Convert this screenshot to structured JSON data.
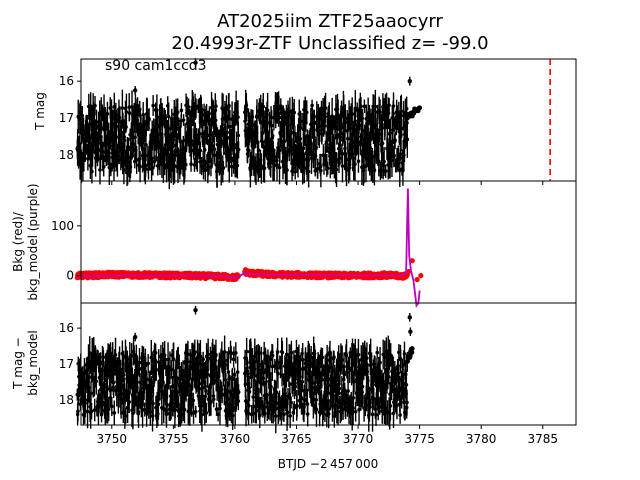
{
  "figure": {
    "title_line1": "AT2025iim  ZTF25aaocyrr",
    "title_line2": "20.4993r-ZTF Unclassified z= -99.0",
    "annotation": "s90 cam1ccd3",
    "xlabel": "BTJD −2 457 000"
  },
  "colors": {
    "points": "#000000",
    "bkg": "#ff0000",
    "bkg_model": "#bf00bf",
    "marker_line": "#ff0000"
  },
  "chart_data": [
    {
      "type": "scatter",
      "panel": "top",
      "ylabel": "T mag",
      "xlim": [
        3747.5,
        3787.7
      ],
      "ylim": [
        18.7,
        15.4
      ],
      "y_inverted": true,
      "yticks": [
        16,
        17,
        18
      ],
      "xticks": [
        3750,
        3755,
        3760,
        3765,
        3770,
        3775,
        3780,
        3785
      ],
      "segments": [
        {
          "x_start": 3747.2,
          "x_end": 3760.3,
          "y_low": 16.6,
          "y_high": 18.5
        },
        {
          "x_start": 3760.8,
          "x_end": 3774.0,
          "y_low": 16.6,
          "y_high": 18.5
        }
      ],
      "outliers": [
        {
          "x": 3751.9,
          "y": 16.25
        },
        {
          "x": 3756.8,
          "y": 15.5
        },
        {
          "x": 3774.2,
          "y": 16.0
        }
      ],
      "rise_tail": {
        "x_start": 3774.0,
        "x_end": 3775.0,
        "y_start": 17.0,
        "y_end": 16.7
      },
      "vertical_line": {
        "x": 3785.6,
        "style": "dashed",
        "color": "red"
      }
    },
    {
      "type": "line",
      "panel": "middle",
      "ylabel_line1": "Bkg (red)/",
      "ylabel_line2": "bkg_model (purple)",
      "xlim": [
        3747.5,
        3787.7
      ],
      "ylim": [
        -55,
        190
      ],
      "yticks": [
        0,
        100
      ],
      "series": [
        {
          "name": "Bkg (red)",
          "color": "red",
          "x": [
            3747.2,
            3750,
            3753,
            3756,
            3759,
            3760.0,
            3760.3,
            3760.8,
            3761.2,
            3763,
            3766,
            3769,
            3772,
            3773.8,
            3774.1,
            3774.4,
            3774.8,
            3775.1
          ],
          "y": [
            0,
            2,
            1,
            0,
            -2,
            -4,
            -1,
            8,
            5,
            2,
            1,
            0,
            1,
            -1,
            8,
            30,
            -8,
            0
          ]
        },
        {
          "name": "bkg_model (purple)",
          "color": "purple",
          "x": [
            3747.2,
            3750,
            3755,
            3759,
            3760.0,
            3760.3,
            3760.8,
            3761.2,
            3765,
            3770,
            3773.5,
            3773.9,
            3774.05,
            3774.15,
            3774.3,
            3774.5,
            3774.75,
            3774.9,
            3775.0
          ],
          "y": [
            -1,
            0,
            0,
            -1,
            -5,
            -3,
            6,
            3,
            1,
            0,
            0,
            5,
            175,
            40,
            10,
            -10,
            -60,
            -55,
            -30
          ]
        }
      ]
    },
    {
      "type": "scatter",
      "panel": "bottom",
      "ylabel_line1": "T mag −",
      "ylabel_line2": "bkg_model",
      "xlim": [
        3747.5,
        3787.7
      ],
      "ylim": [
        18.7,
        15.3
      ],
      "y_inverted": true,
      "yticks": [
        16,
        17,
        18
      ],
      "xticks": [
        3750,
        3755,
        3760,
        3765,
        3770,
        3775,
        3780,
        3785
      ],
      "segments": [
        {
          "x_start": 3747.2,
          "x_end": 3760.3,
          "y_low": 16.6,
          "y_high": 18.5
        },
        {
          "x_start": 3760.8,
          "x_end": 3774.0,
          "y_low": 16.6,
          "y_high": 18.5
        }
      ],
      "outliers": [
        {
          "x": 3751.9,
          "y": 16.25
        },
        {
          "x": 3756.8,
          "y": 15.5
        },
        {
          "x": 3774.2,
          "y": 15.7
        },
        {
          "x": 3774.25,
          "y": 16.1
        }
      ],
      "rise_tail": {
        "x_start": 3774.0,
        "x_end": 3774.4,
        "y_start": 16.9,
        "y_end": 16.6
      }
    }
  ]
}
